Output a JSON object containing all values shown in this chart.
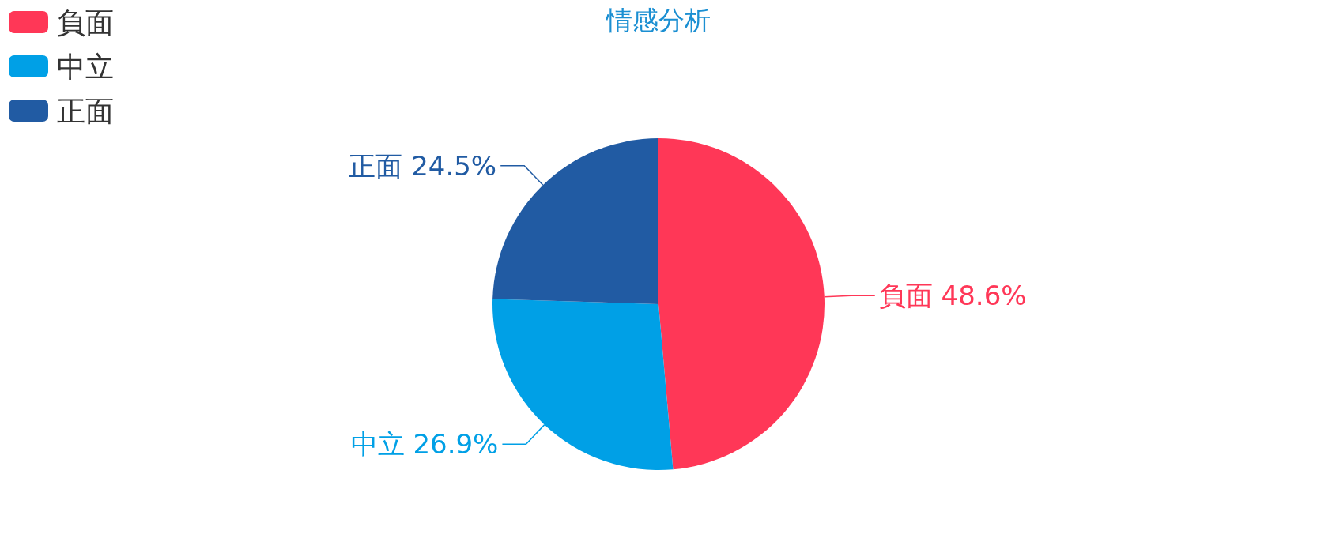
{
  "chart_data": {
    "type": "pie",
    "title": "情感分析",
    "categories": [
      "負面",
      "中立",
      "正面"
    ],
    "values": [
      48.6,
      26.9,
      24.5
    ],
    "value_labels": [
      "48.6%",
      "26.9%",
      "24.5%"
    ],
    "colors": [
      "#ff3757",
      "#00a0e6",
      "#215ba3"
    ],
    "legend": "top left"
  }
}
